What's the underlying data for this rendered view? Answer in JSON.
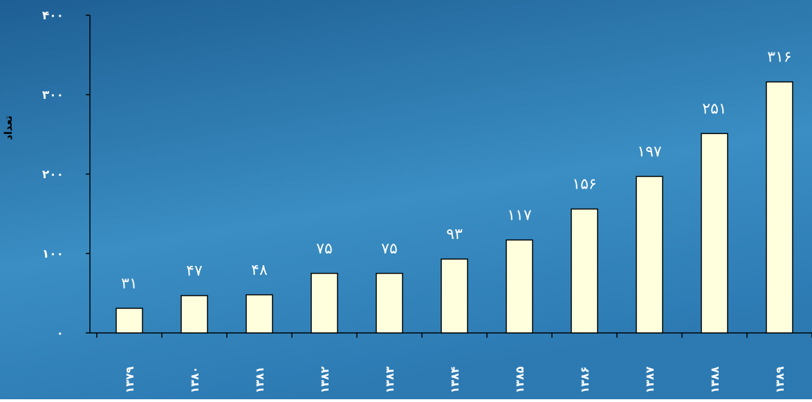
{
  "chart_data": {
    "type": "bar",
    "title": "",
    "xlabel": "",
    "ylabel": "تعداد",
    "categories": [
      "۱۳۷۹",
      "۱۳۸۰",
      "۱۳۸۱",
      "۱۳۸۲",
      "۱۳۸۳",
      "۱۳۸۴",
      "۱۳۸۵",
      "۱۳۸۶",
      "۱۳۸۷",
      "۱۳۸۸",
      "۱۳۸۹"
    ],
    "values": [
      31,
      47,
      48,
      75,
      75,
      93,
      117,
      156,
      197,
      251,
      316
    ],
    "value_labels": [
      "۳۱",
      "۴۷",
      "۴۸",
      "۷۵",
      "۷۵",
      "۹۳",
      "۱۱۷",
      "۱۵۶",
      "۱۹۷",
      "۲۵۱",
      "۳۱۶"
    ],
    "ylim": [
      0,
      400
    ],
    "yticks": [
      0,
      100,
      200,
      300,
      400
    ],
    "ytick_labels": [
      "۰",
      "۱۰۰",
      "۲۰۰",
      "۳۰۰",
      "۴۰۰"
    ],
    "grid": false,
    "legend": "none",
    "colors": {
      "bar_fill": "#ffffde",
      "bar_stroke": "#000000",
      "axis": "#000000",
      "text": "#ffffff",
      "background_top": "#1e5f94",
      "background_mid": "#3a8ec3",
      "background_bottom": "#2d7ab3"
    }
  }
}
